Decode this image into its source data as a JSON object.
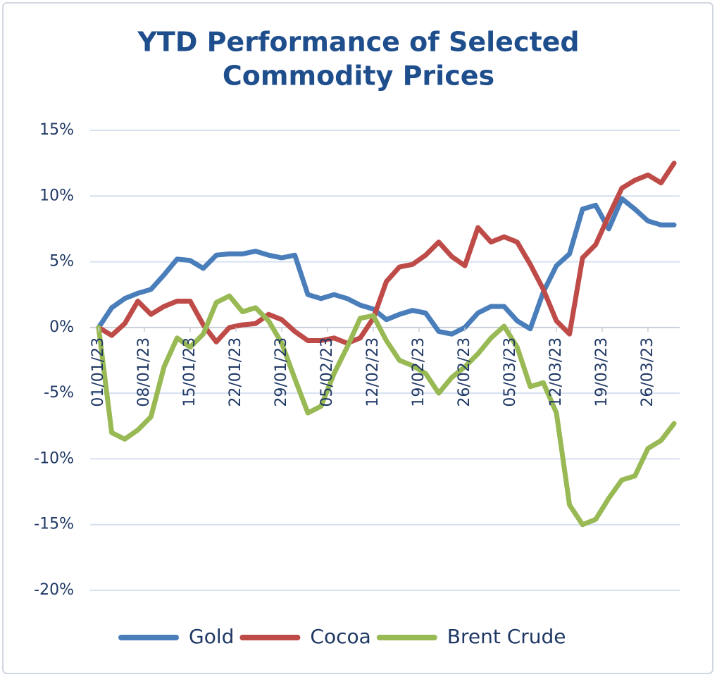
{
  "chart_data": {
    "type": "line",
    "title": [
      "YTD Performance of Selected",
      "Commodity Prices"
    ],
    "x": [
      "01/01/23",
      "03/01/23",
      "05/01/23",
      "07/01/23",
      "09/01/23",
      "11/01/23",
      "13/01/23",
      "15/01/23",
      "17/01/23",
      "19/01/23",
      "21/01/23",
      "23/01/23",
      "25/01/23",
      "27/01/23",
      "29/01/23",
      "31/01/23",
      "02/02/23",
      "04/02/23",
      "06/02/23",
      "08/02/23",
      "10/02/23",
      "12/02/23",
      "14/02/23",
      "16/02/23",
      "18/02/23",
      "20/02/23",
      "22/02/23",
      "24/02/23",
      "26/02/23",
      "28/02/23",
      "02/03/23",
      "04/03/23",
      "06/03/23",
      "08/03/23",
      "10/03/23",
      "12/03/23",
      "14/03/23",
      "16/03/23",
      "18/03/23",
      "20/03/23",
      "22/03/23",
      "24/03/23",
      "26/03/23",
      "28/03/23",
      "30/03/23"
    ],
    "series": [
      {
        "name": "Gold",
        "color": "#4a7ebb",
        "values": [
          0,
          1.5,
          2.2,
          2.6,
          2.9,
          4,
          5.2,
          5.1,
          4.5,
          5.5,
          5.6,
          5.6,
          5.8,
          5.5,
          5.3,
          5.5,
          2.5,
          2.2,
          2.5,
          2.2,
          1.7,
          1.4,
          0.6,
          1.0,
          1.3,
          1.1,
          -0.3,
          -0.5,
          0,
          1.1,
          1.6,
          1.6,
          0.5,
          -0.1,
          2.7,
          4.7,
          5.6,
          9,
          9.3,
          7.5,
          9.8,
          9,
          8.1,
          7.8,
          7.8
        ]
      },
      {
        "name": "Cocoa",
        "color": "#be4b48",
        "values": [
          0,
          -0.6,
          0.3,
          2,
          1,
          1.6,
          2,
          2,
          0.2,
          -1.1,
          0,
          0.2,
          0.3,
          1,
          0.6,
          -0.3,
          -1,
          -1,
          -0.8,
          -1.2,
          -0.8,
          0.7,
          3.5,
          4.6,
          4.8,
          5.5,
          6.5,
          5.4,
          4.7,
          7.6,
          6.5,
          6.9,
          6.5,
          4.8,
          2.9,
          0.5,
          -0.5,
          5.3,
          6.3,
          8.5,
          10.6,
          11.2,
          11.6,
          11,
          12.5
        ]
      },
      {
        "name": "Brent Crude",
        "color": "#98b954",
        "values": [
          0,
          -8,
          -8.5,
          -7.8,
          -6.8,
          -3,
          -0.8,
          -1.5,
          -0.5,
          1.9,
          2.4,
          1.2,
          1.5,
          0.5,
          -1.2,
          -3.9,
          -6.5,
          -6,
          -3.5,
          -1.5,
          0.7,
          0.9,
          -1,
          -2.5,
          -2.9,
          -3.5,
          -5,
          -3.8,
          -3,
          -2,
          -0.8,
          0.1,
          -1.5,
          -4.5,
          -4.2,
          -6.5,
          -13.5,
          -15,
          -14.6,
          -13,
          -11.6,
          -11.3,
          -9.2,
          -8.6,
          -7.3
        ]
      }
    ],
    "xticks": [
      "01/01/23",
      "08/01/23",
      "15/01/23",
      "22/01/23",
      "29/01/23",
      "05/02/23",
      "12/02/23",
      "19/02/23",
      "26/02/23",
      "05/03/23",
      "12/03/23",
      "19/03/23",
      "26/03/23"
    ],
    "ylim": [
      -20,
      15
    ],
    "yticks": [
      {
        "value": -20,
        "label": "-20%"
      },
      {
        "value": -15,
        "label": "-15%"
      },
      {
        "value": -10,
        "label": "-10%"
      },
      {
        "value": -5,
        "label": "-5%"
      },
      {
        "value": 0,
        "label": "0%"
      },
      {
        "value": 5,
        "label": "5%"
      },
      {
        "value": 10,
        "label": "10%"
      },
      {
        "value": 15,
        "label": "15%"
      }
    ],
    "grid": true,
    "legend": "bottom"
  }
}
